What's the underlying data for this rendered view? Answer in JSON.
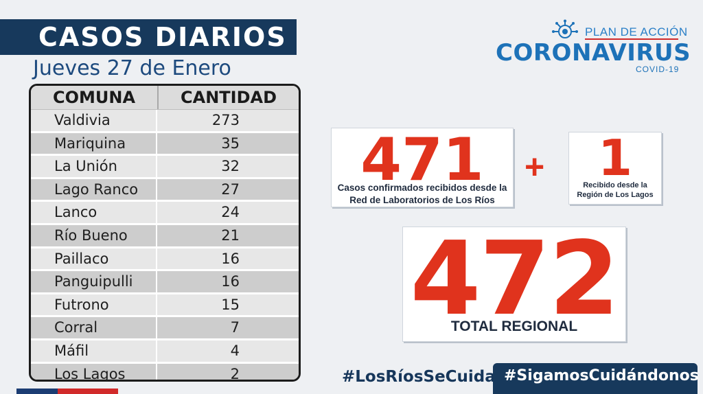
{
  "header": {
    "title": "CASOS DIARIOS",
    "date": "Jueves 27 de Enero"
  },
  "logo": {
    "plan": "PLAN DE ACCIÓN",
    "main": "CORONAVIRUS",
    "sub": "COVID-19"
  },
  "table": {
    "headers": [
      "COMUNA",
      "CANTIDAD"
    ],
    "rows": [
      {
        "comuna": "Valdivia",
        "cantidad": "273"
      },
      {
        "comuna": "Mariquina",
        "cantidad": "35"
      },
      {
        "comuna": "La Unión",
        "cantidad": "32"
      },
      {
        "comuna": "Lago Ranco",
        "cantidad": "27"
      },
      {
        "comuna": "Lanco",
        "cantidad": "24"
      },
      {
        "comuna": "Río Bueno",
        "cantidad": "21"
      },
      {
        "comuna": "Paillaco",
        "cantidad": "16"
      },
      {
        "comuna": "Panguipulli",
        "cantidad": "16"
      },
      {
        "comuna": "Futrono",
        "cantidad": "15"
      },
      {
        "comuna": "Corral",
        "cantidad": "7"
      },
      {
        "comuna": "Máfil",
        "cantidad": "4"
      },
      {
        "comuna": "Los Lagos",
        "cantidad": "2"
      }
    ]
  },
  "stats": {
    "lab_value": "471",
    "lab_caption_1": "Casos confirmados recibidos desde la",
    "lab_caption_2": "Red de Laboratorios de Los Ríos",
    "plus": "+",
    "other_value": "1",
    "other_caption_1": "Recibido desde  la",
    "other_caption_2": "Región de Los Lagos",
    "total_value": "472",
    "total_caption": "TOTAL REGIONAL"
  },
  "hashtags": {
    "tag1": "#LosRíosSeCuida",
    "tag2": "#SigamosCuidándonos"
  },
  "colors": {
    "navy": "#17395c",
    "accent_red": "#e0331d",
    "brand_blue": "#1d72b8"
  }
}
